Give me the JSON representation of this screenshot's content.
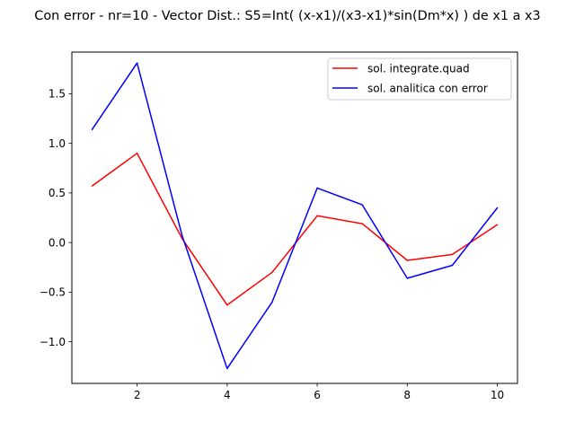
{
  "chart_data": {
    "type": "line",
    "title": "Con error - nr=10 - Vector Dist.: S5=Int( (x-x1)/(x3-x1)*sin(Dm*x) ) de x1 a x3",
    "xlabel": "",
    "ylabel": "",
    "xlim": [
      0.55,
      10.45
    ],
    "ylim": [
      -1.42,
      1.92
    ],
    "xticks": [
      2,
      4,
      6,
      8,
      10
    ],
    "xtick_labels": [
      "2",
      "4",
      "6",
      "8",
      "10"
    ],
    "yticks": [
      -1.0,
      -0.5,
      0.0,
      0.5,
      1.0,
      1.5
    ],
    "ytick_labels": [
      "−1.0",
      "−0.5",
      "0.0",
      "0.5",
      "1.0",
      "1.5"
    ],
    "grid": false,
    "legend_position": "upper right",
    "x": [
      1,
      2,
      3,
      4,
      5,
      6,
      7,
      8,
      9,
      10
    ],
    "series": [
      {
        "name": "sol. integrate.quad",
        "color": "#ff0000",
        "values": [
          0.57,
          0.9,
          0.04,
          -0.63,
          -0.3,
          0.27,
          0.19,
          -0.18,
          -0.12,
          0.18
        ]
      },
      {
        "name": "sol. analitica con error",
        "color": "#0000ff",
        "values": [
          1.14,
          1.81,
          0.07,
          -1.27,
          -0.6,
          0.55,
          0.38,
          -0.36,
          -0.23,
          0.35
        ]
      }
    ]
  }
}
